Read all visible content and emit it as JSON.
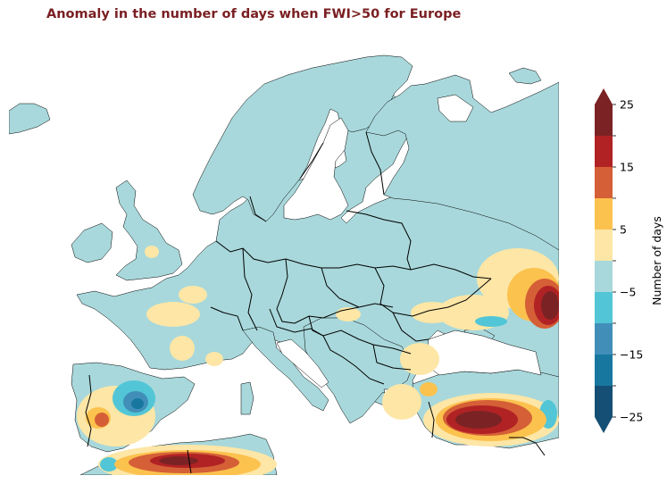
{
  "title": "Anomaly in the number of days when FWI>50 for Europe",
  "colorbar": {
    "label": "Number of days",
    "tick_labels": [
      "25",
      "15",
      "5",
      "−5",
      "−15",
      "−25"
    ],
    "bins": [
      {
        "color": "#154f75"
      },
      {
        "color": "#17779f"
      },
      {
        "color": "#418fb9"
      },
      {
        "color": "#52c6d6"
      },
      {
        "color": "#a8d8db"
      },
      {
        "color": "#fde6a6"
      },
      {
        "color": "#fcc24e"
      },
      {
        "color": "#d55f36"
      },
      {
        "color": "#b12225"
      },
      {
        "color": "#7b2324"
      }
    ],
    "extend": "both"
  },
  "map": {
    "land_color": "#a8d8db",
    "sea_color": "#ffffff",
    "border_color": "#000000"
  }
}
